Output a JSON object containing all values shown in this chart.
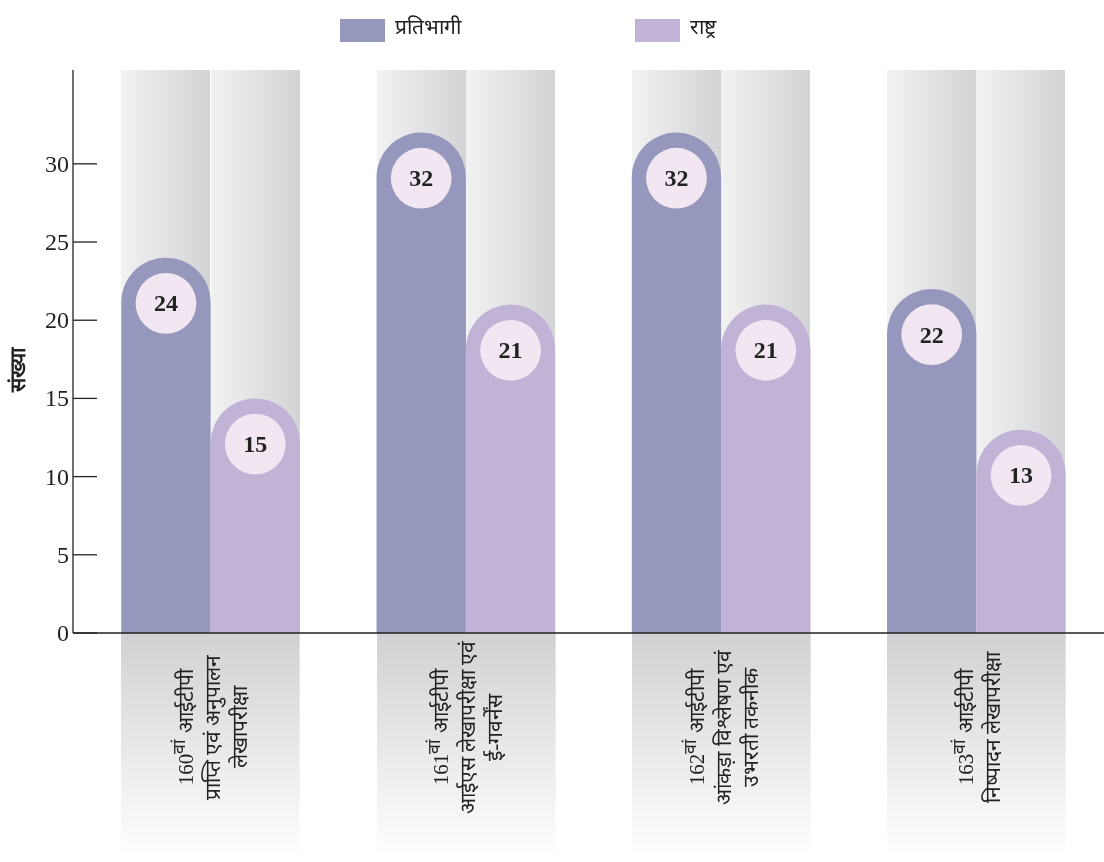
{
  "chart_data": {
    "type": "bar",
    "ylabel": "संख्या",
    "categories": [
      "160$^{वां}$ आईटीपी प्राप्ति एवं अनुपालन लेखापरीक्षा",
      "161$^{वां}$ आईटीपी आईएस लेखापरीक्षा एवं ई-गवर्नेंस",
      "162$^{वां}$ आईटीपी आंकड़ा विश्लेषण एवं उभरती तकनीक",
      "163$^{वां}$ आईटीपी निष्पादन लेखापरीक्षा"
    ],
    "series": [
      {
        "name": "प्रतिभागी",
        "color": "#9597bd",
        "values": [
          24,
          32,
          32,
          22
        ]
      },
      {
        "name": "राष्ट्र",
        "color": "#c0b3d6",
        "values": [
          15,
          21,
          21,
          13
        ]
      }
    ],
    "ylim": [
      0,
      36
    ],
    "yticks": [
      0,
      5,
      10,
      15,
      20,
      25,
      30
    ],
    "data_labels": true,
    "legend": "top",
    "grid": false
  }
}
